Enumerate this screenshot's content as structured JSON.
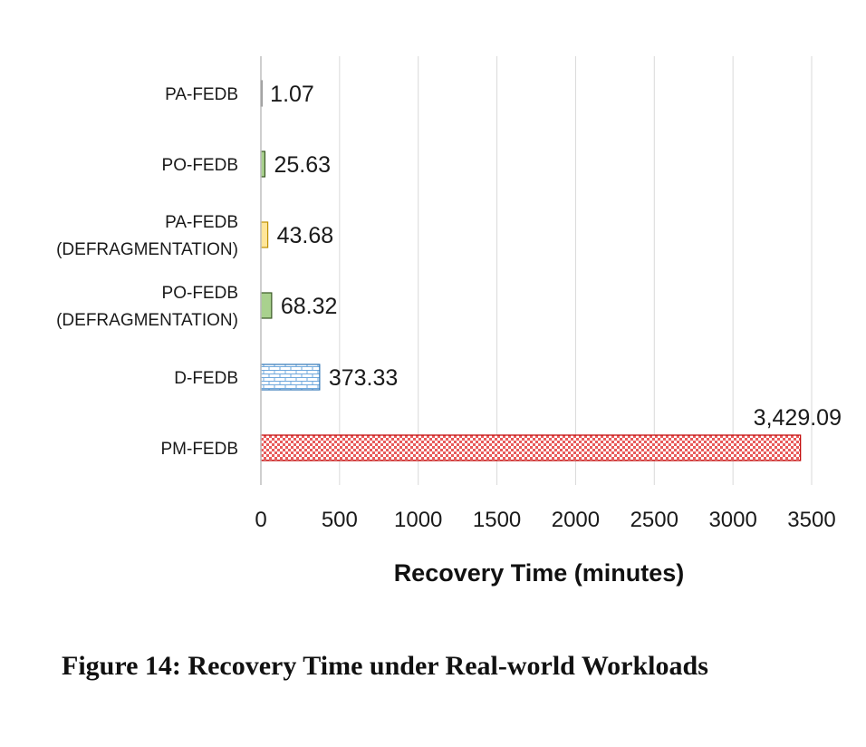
{
  "chart_data": {
    "type": "bar",
    "orientation": "horizontal",
    "categories": [
      [
        "PA-FEDB"
      ],
      [
        "PO-FEDB"
      ],
      [
        "PA-FEDB",
        "(DEFRAGMENTATION)"
      ],
      [
        "PO-FEDB",
        "(DEFRAGMENTATION)"
      ],
      [
        "D-FEDB"
      ],
      [
        "PM-FEDB"
      ]
    ],
    "values": [
      1.07,
      25.63,
      43.68,
      68.32,
      373.33,
      3429.09
    ],
    "data_labels": [
      "1.07",
      "25.63",
      "43.68",
      "68.32",
      "373.33",
      "3,429.09"
    ],
    "xlabel": "Recovery Time (minutes)",
    "ylabel": "",
    "xlim": [
      0,
      3500
    ],
    "xticks": [
      0,
      500,
      1000,
      1500,
      2000,
      2500,
      3000,
      3500
    ],
    "grid": true,
    "bar_colors": [
      "#d9d9d9",
      "#a9d18e",
      "#ffe699",
      "#a9d18e",
      "#bdd7ee",
      "#ff7c80"
    ],
    "bar_borders": [
      "#595959",
      "#385723",
      "#bf9000",
      "#385723",
      "#2e75b6",
      "#c00000"
    ]
  },
  "caption": "Figure 14: Recovery Time under Real-world Workloads"
}
